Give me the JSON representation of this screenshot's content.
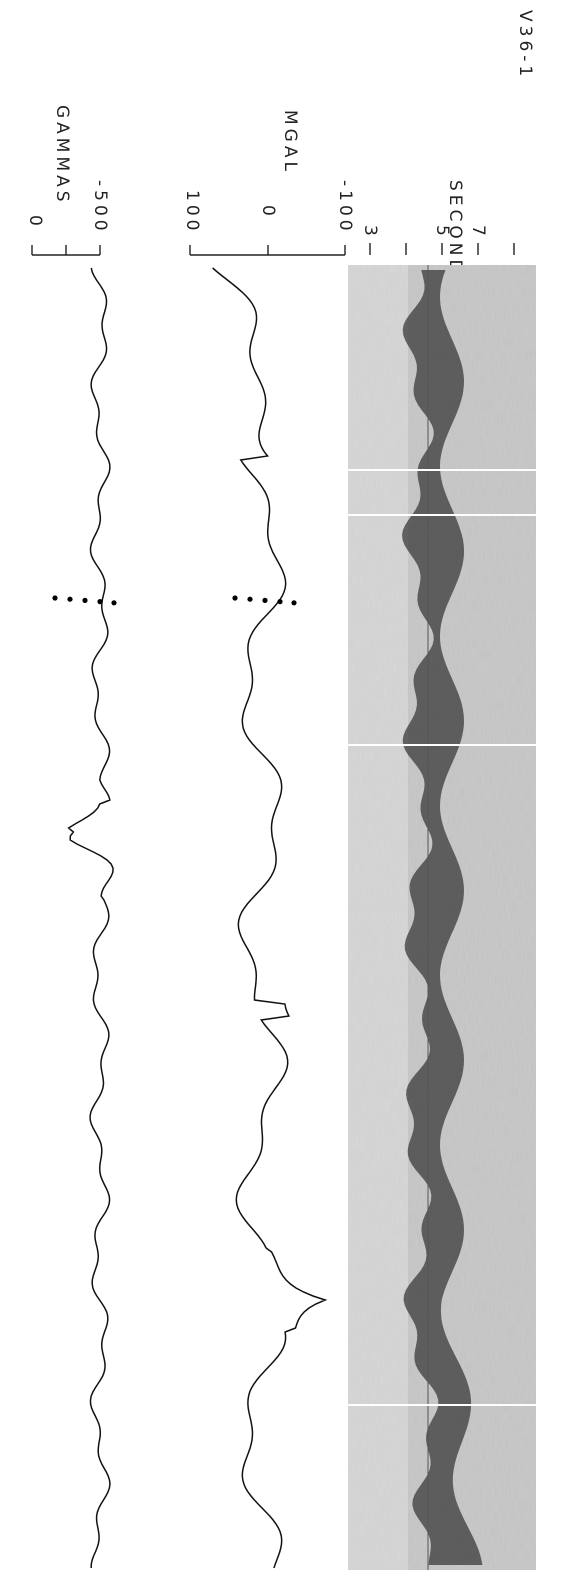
{
  "figure": {
    "label": "V36-1",
    "magnetics": {
      "unit": "GAMMAS",
      "ticks": [
        "0",
        "-500"
      ]
    },
    "gravity": {
      "unit": "MGAL",
      "ticks": [
        "100",
        "0",
        "-100"
      ]
    },
    "seismic": {
      "unit": "SECONDS",
      "ticks": [
        "3",
        "5",
        "7"
      ]
    }
  }
}
